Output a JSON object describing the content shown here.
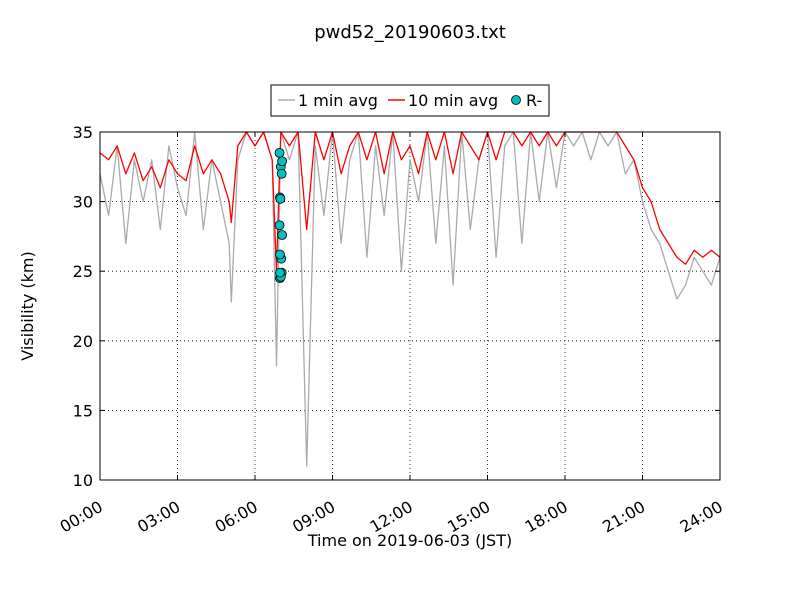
{
  "chart_data": {
    "type": "line",
    "title": "pwd52_20190603.txt",
    "xlabel": "Time on 2019-06-03 (JST)",
    "ylabel": "Visibility (km)",
    "xlim": [
      "00:00",
      "24:00"
    ],
    "ylim": [
      10,
      35
    ],
    "x_ticks": [
      "00:00",
      "03:00",
      "06:00",
      "09:00",
      "12:00",
      "15:00",
      "18:00",
      "21:00",
      "24:00"
    ],
    "y_ticks": [
      "10",
      "15",
      "20",
      "25",
      "30",
      "35"
    ],
    "grid": true,
    "legend_position": "top-center",
    "legend": [
      {
        "label": "1 min avg",
        "color": "#aaaaaa",
        "kind": "line"
      },
      {
        "label": "10 min avg",
        "color": "#ff0000",
        "kind": "line"
      },
      {
        "label": "R-",
        "color": "#00bfbf",
        "kind": "marker"
      }
    ],
    "series": [
      {
        "name": "1 min avg",
        "color": "#aaaaaa",
        "x": [
          "00:00",
          "00:20",
          "00:40",
          "01:00",
          "01:20",
          "01:40",
          "02:00",
          "02:20",
          "02:40",
          "03:00",
          "03:20",
          "03:40",
          "04:00",
          "04:20",
          "04:40",
          "05:00",
          "05:05",
          "05:20",
          "05:40",
          "06:00",
          "06:20",
          "06:40",
          "06:50",
          "07:00",
          "07:20",
          "07:40",
          "08:00",
          "08:20",
          "08:40",
          "09:00",
          "09:20",
          "09:40",
          "10:00",
          "10:20",
          "10:40",
          "11:00",
          "11:20",
          "11:40",
          "12:00",
          "12:20",
          "12:40",
          "13:00",
          "13:20",
          "13:40",
          "14:00",
          "14:20",
          "14:40",
          "15:00",
          "15:20",
          "15:40",
          "16:00",
          "16:20",
          "16:40",
          "17:00",
          "17:20",
          "17:40",
          "18:00",
          "18:20",
          "18:40",
          "19:00",
          "19:20",
          "19:40",
          "20:00",
          "20:20",
          "20:40",
          "21:00",
          "21:20",
          "21:40",
          "22:00",
          "22:20",
          "22:40",
          "23:00",
          "23:20",
          "23:40",
          "24:00"
        ],
        "values": [
          32,
          29,
          34,
          27,
          33,
          30,
          33,
          28,
          34,
          31,
          29,
          35,
          28,
          33,
          30,
          27,
          22.8,
          33,
          35,
          34,
          35,
          33,
          18.2,
          35,
          33,
          35,
          11,
          34,
          29,
          35,
          27,
          33,
          35,
          26,
          34,
          29,
          35,
          25,
          33,
          30,
          35,
          27,
          34,
          24,
          35,
          28,
          33,
          35,
          26,
          34,
          35,
          27,
          35,
          30,
          35,
          31,
          35,
          34,
          35,
          33,
          35,
          34,
          35,
          32,
          33,
          30,
          28,
          27,
          25,
          23,
          24,
          26,
          25,
          24,
          26
        ]
      },
      {
        "name": "10 min avg",
        "color": "#ff0000",
        "x": [
          "00:00",
          "00:20",
          "00:40",
          "01:00",
          "01:20",
          "01:40",
          "02:00",
          "02:20",
          "02:40",
          "03:00",
          "03:20",
          "03:40",
          "04:00",
          "04:20",
          "04:40",
          "05:00",
          "05:05",
          "05:20",
          "05:40",
          "06:00",
          "06:20",
          "06:40",
          "06:50",
          "07:00",
          "07:20",
          "07:40",
          "08:00",
          "08:20",
          "08:40",
          "09:00",
          "09:20",
          "09:40",
          "10:00",
          "10:20",
          "10:40",
          "11:00",
          "11:20",
          "11:40",
          "12:00",
          "12:20",
          "12:40",
          "13:00",
          "13:20",
          "13:40",
          "14:00",
          "14:20",
          "14:40",
          "15:00",
          "15:20",
          "15:40",
          "16:00",
          "16:20",
          "16:40",
          "17:00",
          "17:20",
          "17:40",
          "18:00",
          "18:20",
          "18:40",
          "19:00",
          "19:20",
          "19:40",
          "20:00",
          "20:20",
          "20:40",
          "21:00",
          "21:20",
          "21:40",
          "22:00",
          "22:20",
          "22:40",
          "23:00",
          "23:20",
          "23:40",
          "24:00"
        ],
        "values": [
          33.5,
          33,
          34,
          32,
          33.5,
          31.5,
          32.5,
          31,
          33,
          32,
          31.5,
          34,
          32,
          33,
          32,
          30,
          28.5,
          34,
          35,
          34,
          35,
          33,
          25,
          35,
          34,
          35,
          28,
          35,
          33,
          35,
          32,
          34,
          35,
          33,
          35,
          32,
          35,
          33,
          34,
          32,
          35,
          33,
          35,
          32,
          35,
          34,
          33,
          35,
          33,
          35,
          35,
          34,
          35,
          34,
          35,
          34,
          35,
          35,
          35,
          35,
          35,
          35,
          35,
          34,
          33,
          31,
          30,
          28,
          27,
          26,
          25.5,
          26.5,
          26,
          26.5,
          26
        ]
      },
      {
        "name": "R-",
        "color": "#00bfbf",
        "kind": "scatter",
        "x": [
          "06:57",
          "07:00",
          "07:03",
          "06:58",
          "07:02",
          "06:59",
          "07:03",
          "06:57",
          "07:01",
          "06:58",
          "07:00",
          "06:59",
          "07:02",
          "06:58",
          "07:00",
          "06:58"
        ],
        "values": [
          33.5,
          32.5,
          32.9,
          30.3,
          32.0,
          30.2,
          27.6,
          28.3,
          25.9,
          26.2,
          24.8,
          24.7,
          24.9,
          24.5,
          24.6,
          24.9
        ]
      }
    ]
  }
}
